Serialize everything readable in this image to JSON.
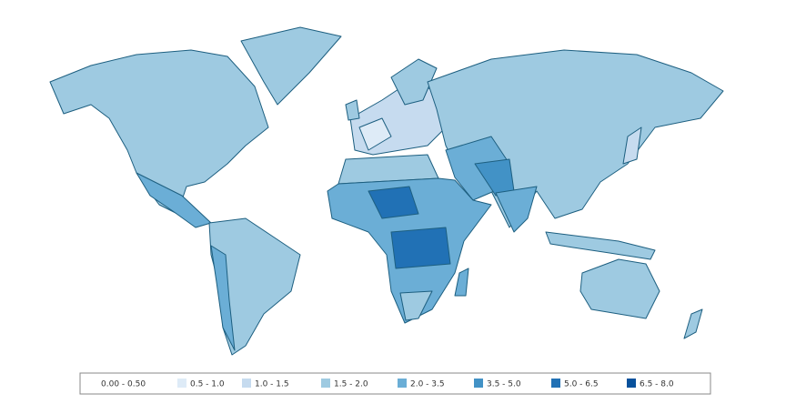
{
  "legend": {
    "items": [
      {
        "label": "0.00 - 0.50",
        "color": "#ffffff"
      },
      {
        "label": "0.5 - 1.0",
        "color": "#deebf7"
      },
      {
        "label": "1.0 - 1.5",
        "color": "#c6dbef"
      },
      {
        "label": "1.5 - 2.0",
        "color": "#9ecae1"
      },
      {
        "label": "2.0 - 3.5",
        "color": "#6baed6"
      },
      {
        "label": "3.5 - 5.0",
        "color": "#4292c6"
      },
      {
        "label": "5.0 - 6.5",
        "color": "#2171b5"
      },
      {
        "label": "6.5 - 8.0",
        "color": "#08519c"
      }
    ]
  }
}
